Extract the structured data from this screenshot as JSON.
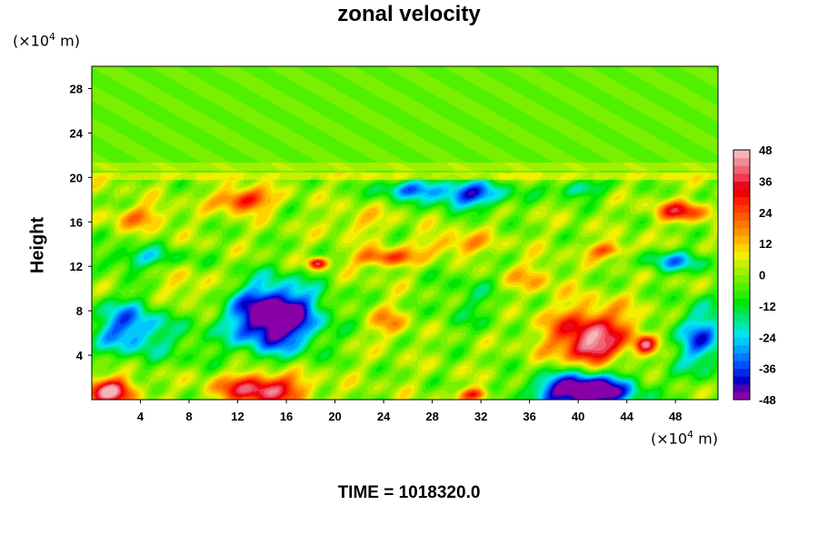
{
  "chart_data": {
    "type": "heatmap",
    "title": "zonal velocity",
    "xlabel": "",
    "ylabel": "Height",
    "x_unit": "(×10",
    "x_unit_exp": "4",
    "x_unit_end": " m)",
    "y_unit": "(×10",
    "y_unit_exp": "4",
    "y_unit_end": " m)",
    "footer": "TIME = 1018320.0",
    "xlim": [
      0,
      51.5
    ],
    "ylim": [
      0,
      30
    ],
    "x_ticks": [
      4,
      8,
      12,
      16,
      20,
      24,
      28,
      32,
      36,
      40,
      44,
      48
    ],
    "y_ticks": [
      4,
      8,
      12,
      16,
      20,
      24,
      28
    ],
    "colorbar": {
      "min": -48,
      "max": 48,
      "step": 3,
      "ticks": [
        48,
        36,
        24,
        12,
        0,
        -12,
        -24,
        -36,
        -48
      ],
      "colors": [
        "#8a00a8",
        "#4b00b4",
        "#0000c8",
        "#0028e6",
        "#0050ff",
        "#0078ff",
        "#00a0ff",
        "#00c8ff",
        "#00e6e6",
        "#00e6b4",
        "#00e678",
        "#00e63c",
        "#00e600",
        "#28f000",
        "#50f000",
        "#78f000",
        "#a0f000",
        "#c8f000",
        "#f0f000",
        "#ffd200",
        "#ffb400",
        "#ff9600",
        "#ff7800",
        "#ff5a00",
        "#ff3c00",
        "#ff1e00",
        "#f00000",
        "#e60a1e",
        "#f03c50",
        "#f06478",
        "#f08c96",
        "#f8b4b4"
      ]
    },
    "features": [
      {
        "x": 15,
        "y": 7.5,
        "sx": 3.6,
        "sy": 3.0,
        "value": -62
      },
      {
        "x": 3,
        "y": 6.5,
        "sx": 3.0,
        "sy": 2.5,
        "value": -34
      },
      {
        "x": 50,
        "y": 5.5,
        "sx": 2.2,
        "sy": 3.0,
        "value": -32
      },
      {
        "x": 40.5,
        "y": 0.8,
        "sx": 4.0,
        "sy": 1.6,
        "value": -62
      },
      {
        "x": 31,
        "y": 18.5,
        "sx": 3.2,
        "sy": 1.2,
        "value": -38
      },
      {
        "x": 26,
        "y": 19,
        "sx": 2.5,
        "sy": 0.9,
        "value": -30
      },
      {
        "x": 40,
        "y": 19,
        "sx": 2.2,
        "sy": 0.8,
        "value": -22
      },
      {
        "x": 4,
        "y": 12.8,
        "sx": 3.5,
        "sy": 1.0,
        "value": -20
      },
      {
        "x": 48,
        "y": 12.5,
        "sx": 3.0,
        "sy": 1.0,
        "value": -24
      },
      {
        "x": 31,
        "y": 9,
        "sx": 3.0,
        "sy": 3.0,
        "value": -10
      },
      {
        "x": 8,
        "y": 5,
        "sx": 2.5,
        "sy": 2.0,
        "value": -8
      },
      {
        "x": 41,
        "y": 6,
        "sx": 3.5,
        "sy": 2.4,
        "value": 38
      },
      {
        "x": 41,
        "y": 4.5,
        "sx": 1.8,
        "sy": 1.0,
        "value": 20
      },
      {
        "x": 45.5,
        "y": 5,
        "sx": 0.8,
        "sy": 0.8,
        "value": 34
      },
      {
        "x": 14,
        "y": 1,
        "sx": 3.5,
        "sy": 1.4,
        "value": 42
      },
      {
        "x": 1.5,
        "y": 0.8,
        "sx": 2.0,
        "sy": 1.2,
        "value": 44
      },
      {
        "x": 31.5,
        "y": 0.5,
        "sx": 1.3,
        "sy": 0.6,
        "value": 30
      },
      {
        "x": 12.5,
        "y": 18,
        "sx": 2.2,
        "sy": 1.0,
        "value": 34
      },
      {
        "x": 18.5,
        "y": 12.3,
        "sx": 0.8,
        "sy": 0.5,
        "value": 40
      },
      {
        "x": 24,
        "y": 12.8,
        "sx": 2.5,
        "sy": 0.8,
        "value": 28
      },
      {
        "x": 30,
        "y": 14,
        "sx": 3.0,
        "sy": 1.0,
        "value": 18
      },
      {
        "x": 42.5,
        "y": 13.5,
        "sx": 1.8,
        "sy": 0.7,
        "value": 24
      },
      {
        "x": 48.5,
        "y": 17,
        "sx": 2.2,
        "sy": 0.9,
        "value": 30
      },
      {
        "x": 4,
        "y": 16.5,
        "sx": 2.5,
        "sy": 1.0,
        "value": 18
      },
      {
        "x": 24.5,
        "y": 7,
        "sx": 1.5,
        "sy": 1.5,
        "value": 16
      },
      {
        "x": 8,
        "y": 10,
        "sx": 2.5,
        "sy": 1.5,
        "value": 10
      },
      {
        "x": 36,
        "y": 11,
        "sx": 2.5,
        "sy": 1.5,
        "value": 12
      },
      {
        "x": 22,
        "y": 16,
        "sx": 2.5,
        "sy": 1.2,
        "value": 10
      }
    ]
  }
}
